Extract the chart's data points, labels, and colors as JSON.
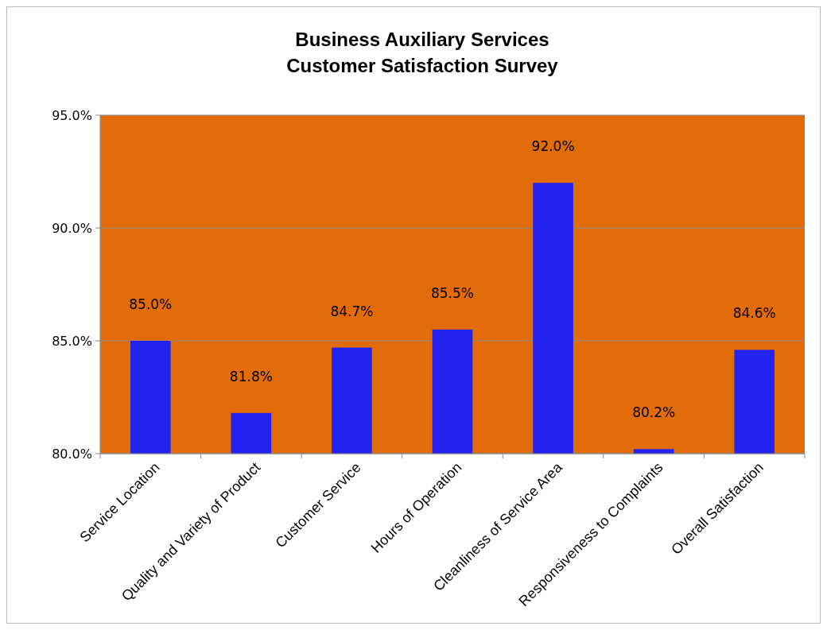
{
  "chart_data": {
    "type": "bar",
    "title": "Business Auxiliary Services\nCustomer Satisfaction Survey",
    "categories": [
      "Service Location",
      "Quality and Variety of Product",
      "Customer Service",
      "Hours of Operation",
      "Cleanliness of Service Area",
      "Responsiveness to Complaints",
      "Overall Satisfaction"
    ],
    "values": [
      85.0,
      81.8,
      84.7,
      85.5,
      92.0,
      80.2,
      84.6
    ],
    "value_labels": [
      "85.0%",
      "81.8%",
      "84.7%",
      "85.5%",
      "92.0%",
      "80.2%",
      "84.6%"
    ],
    "color": "#2323f0",
    "ylim": [
      80,
      95
    ],
    "yticks": [
      {
        "value": 80,
        "label": "80.0%"
      },
      {
        "value": 85,
        "label": "85.0%"
      },
      {
        "value": 90,
        "label": "90.0%"
      },
      {
        "value": 95,
        "label": "95.0%"
      }
    ],
    "grid": "y"
  }
}
